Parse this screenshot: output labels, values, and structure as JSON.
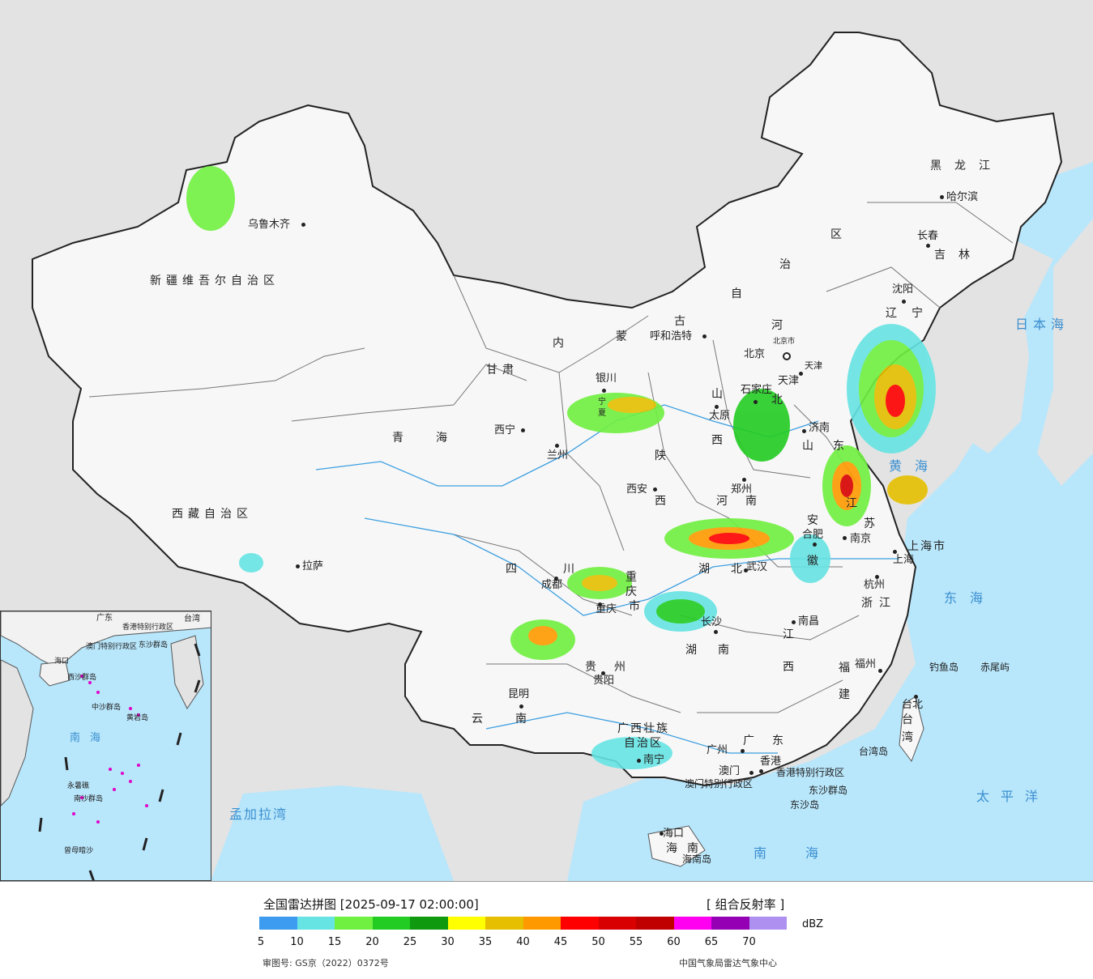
{
  "legend": {
    "title": "全国雷达拼图 [2025-09-17 02:00:00]",
    "product": "[ 组合反射率 ]",
    "unit": "dBZ",
    "colors": [
      "#3d9bf0",
      "#66e3e3",
      "#70f040",
      "#22cc22",
      "#0f990f",
      "#ffff00",
      "#e6c000",
      "#ff9900",
      "#ff0000",
      "#d80000",
      "#c00000",
      "#ff00f0",
      "#9600b4",
      "#ad90f0"
    ],
    "ticks": [
      "5",
      "10",
      "15",
      "20",
      "25",
      "30",
      "35",
      "40",
      "45",
      "50",
      "55",
      "60",
      "65",
      "70"
    ],
    "approval": "审图号: GS京（2022）0372号",
    "agency": "中国气象局雷达气象中心"
  },
  "provinces": {
    "xinjiang": "新疆维吾尔自治区",
    "xizang": "西藏自治区",
    "qinghai": "青海",
    "gansu": "甘肃",
    "neimenggu_1": "内",
    "neimenggu_2": "蒙",
    "neimenggu_3": "古",
    "neimenggu_4": "自",
    "neimenggu_5": "治",
    "neimenggu_6": "区",
    "heilongjiang": "黑龙江",
    "jilin": "吉林",
    "liaoning": "辽宁",
    "hebei_1": "河",
    "hebei_2": "北",
    "shanxi_1": "山",
    "shanxi_2": "西",
    "shaanxi_1": "陕",
    "shaanxi_2": "西",
    "shandong_1": "山",
    "shandong_2": "东",
    "henan": "河南",
    "jiangsu_1": "江",
    "jiangsu_2": "苏",
    "anhui_1": "安",
    "anhui_2": "徽",
    "shanghai": "上海市",
    "zhejiang": "浙江",
    "hubei": "湖北",
    "sichuan_1": "四",
    "sichuan_2": "川",
    "chongqing_1": "重",
    "chongqing_2": "庆",
    "chongqing_3": "市",
    "hunan": "湖南",
    "jiangxi_1": "江",
    "jiangxi_2": "西",
    "fujian_1": "福",
    "fujian_2": "建",
    "guizhou": "贵州",
    "yunnan": "云南",
    "guangxi_1": "广西壮族",
    "guangxi_2": "自治区",
    "guangdong": "广东",
    "hainan_1": "海",
    "hainan_2": "南",
    "taiwan_1": "台",
    "taiwan_2": "湾",
    "ningxia_1": "宁",
    "ningxia_2": "夏",
    "tianjin": "天津",
    "hk": "香港特别行政区",
    "macau": "澳门特别行政区"
  },
  "cities": {
    "urumqi": "乌鲁木齐",
    "lhasa": "拉萨",
    "xining": "西宁",
    "lanzhou": "兰州",
    "yinchuan": "银川",
    "hohhot": "呼和浩特",
    "beijing": "北京",
    "tianjin": "天津",
    "shijiazhuang": "石家庄",
    "taiyuan": "太原",
    "jinan": "济南",
    "zhengzhou": "郑州",
    "xian": "西安",
    "hefei": "合肥",
    "nanjing": "南京",
    "shanghai": "上海",
    "hangzhou": "杭州",
    "wuhan": "武汉",
    "chengdu": "成都",
    "chongqing": "重庆",
    "changsha": "长沙",
    "nanchang": "南昌",
    "fuzhou": "福州",
    "guiyang": "贵阳",
    "kunming": "昆明",
    "nanning": "南宁",
    "guangzhou": "广州",
    "hongkong": "香港",
    "macau": "澳门",
    "haikou": "海口",
    "taibei": "台北",
    "harbin": "哈尔滨",
    "changchun": "长春",
    "shenyang": "沈阳",
    "beijing_city": "北京市"
  },
  "seas": {
    "japan": "日本海",
    "yellow": "黄海",
    "east": "东海",
    "pacific": "太平洋",
    "south": "南海",
    "bengal": "孟加拉湾"
  },
  "islands": {
    "diaoyu": "钓鱼岛",
    "chiwei": "赤尾屿",
    "dongsha_1": "东沙群岛",
    "dongsha_2": "东沙岛",
    "taiwan_island": "台湾岛",
    "hainan_island": "海南岛"
  },
  "inset": {
    "south_sea": "南海",
    "xisha": "西沙群岛",
    "zhongsha": "中沙群岛",
    "nansha": "南沙群岛",
    "yongshu": "永暑礁",
    "huangyan": "黄岩岛",
    "zengmu": "曾母暗沙",
    "haikou": "海口",
    "guangdong": "广东",
    "hk": "香港特别行政区",
    "macau": "澳门特别行政区",
    "dongsha": "东沙群岛",
    "taiwan": "台湾"
  }
}
